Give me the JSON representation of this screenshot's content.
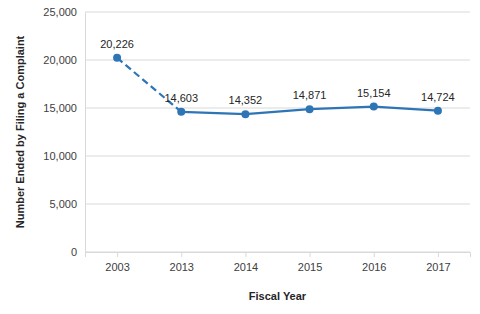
{
  "chart_data": {
    "type": "line",
    "x_label": "Fiscal Year",
    "y_label": "Number Ended by Filing a Complaint",
    "categories": [
      "2003",
      "2013",
      "2014",
      "2015",
      "2016",
      "2017"
    ],
    "values": [
      20226,
      14603,
      14352,
      14871,
      15154,
      14724
    ],
    "value_labels": [
      "20,226",
      "14,603",
      "14,352",
      "14,871",
      "15,154",
      "14,724"
    ],
    "data_labels": true,
    "color": "#2e75b6",
    "marker": "circle",
    "ylim": [
      0,
      25000
    ],
    "yticks": [
      0,
      {
        "value": 5000,
        "label": "5,000"
      },
      {
        "value": 10000,
        "label": "10,000"
      },
      {
        "value": 15000,
        "label": "15,000"
      },
      {
        "value": 20000,
        "label": "20,000"
      },
      {
        "value": 25000,
        "label": "25,000"
      }
    ],
    "grid": true
  }
}
